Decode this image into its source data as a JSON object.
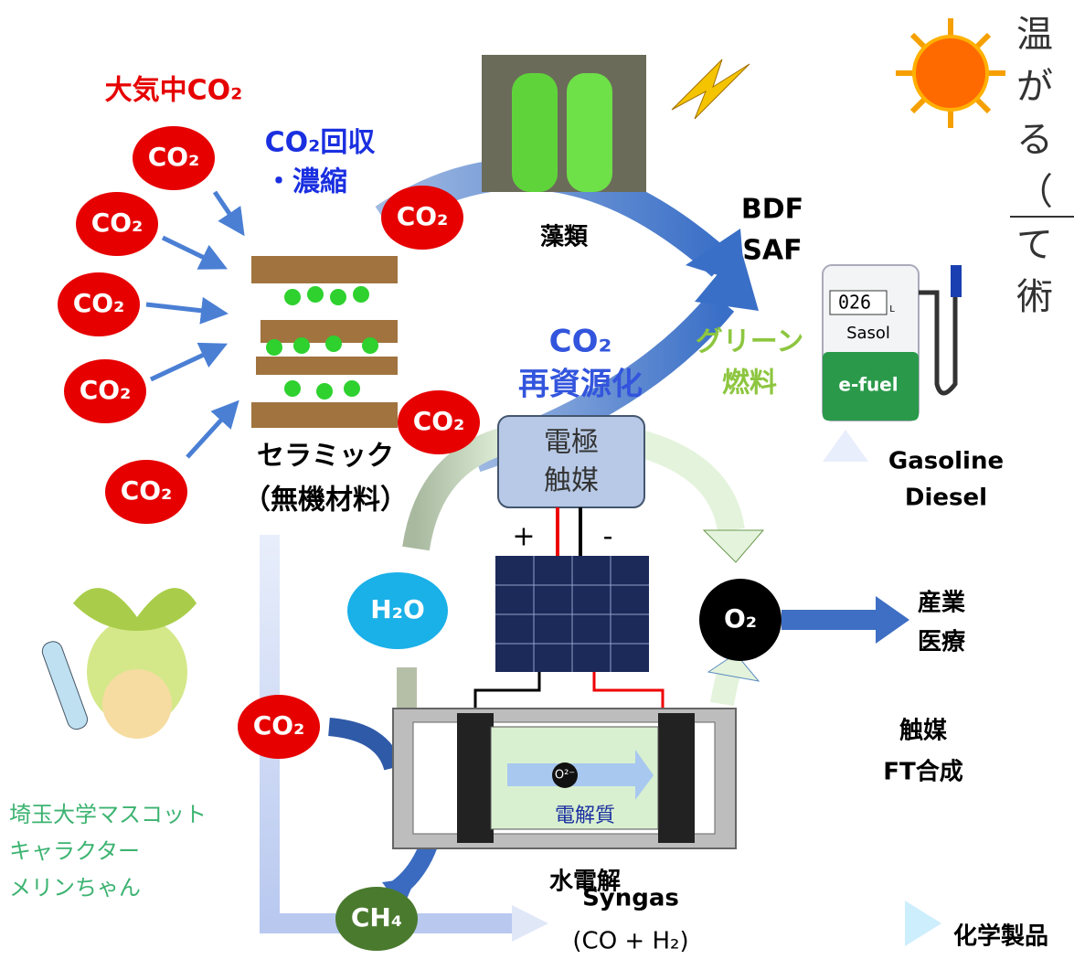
{
  "atmosphere": {
    "label": "大気中CO₂",
    "bubbles": [
      "CO₂",
      "CO₂",
      "CO₂",
      "CO₂",
      "CO₂"
    ]
  },
  "capture": {
    "line1": "CO₂回収",
    "line2": "・濃縮"
  },
  "ceramic": {
    "line1": "セラミック",
    "line2": "（無機材料）"
  },
  "algae": {
    "bubble": "CO₂",
    "label": "藻類",
    "fuel1": "BDF",
    "fuel2": "SAF"
  },
  "center": {
    "line1": "CO₂",
    "line2": "再資源化"
  },
  "green_fuel": {
    "line1": "グリーン",
    "line2": "燃料"
  },
  "pump": {
    "counter": "026",
    "unit": "L",
    "brand": "Sasol",
    "band": "e-fuel"
  },
  "gasoline": {
    "line1": "Gasoline",
    "line2": "Diesel"
  },
  "electrode": {
    "bubble": "CO₂",
    "line1": "電極",
    "line2": "触媒",
    "plus": "+",
    "minus": "-"
  },
  "water": "H₂O",
  "oxygen": {
    "bubble": "O₂",
    "use1": "産業",
    "use2": "医療"
  },
  "electrolysis": {
    "ion": "O²⁻",
    "electrolyte": "電解質",
    "label": "水電解",
    "bubble": "CO₂"
  },
  "catalyst": {
    "line1": "触媒",
    "line2": "FT合成"
  },
  "mascot": {
    "line1": "埼玉大学マスコット",
    "line2": "キャラクター",
    "line3": "メリンちゃん"
  },
  "methane": "CH₄",
  "syngas": {
    "line1": "Syngas",
    "line2": "(CO + H₂)"
  },
  "chemicals": "化学製品",
  "side_text": [
    "温",
    "が",
    "る",
    "（",
    "て",
    "術"
  ]
}
